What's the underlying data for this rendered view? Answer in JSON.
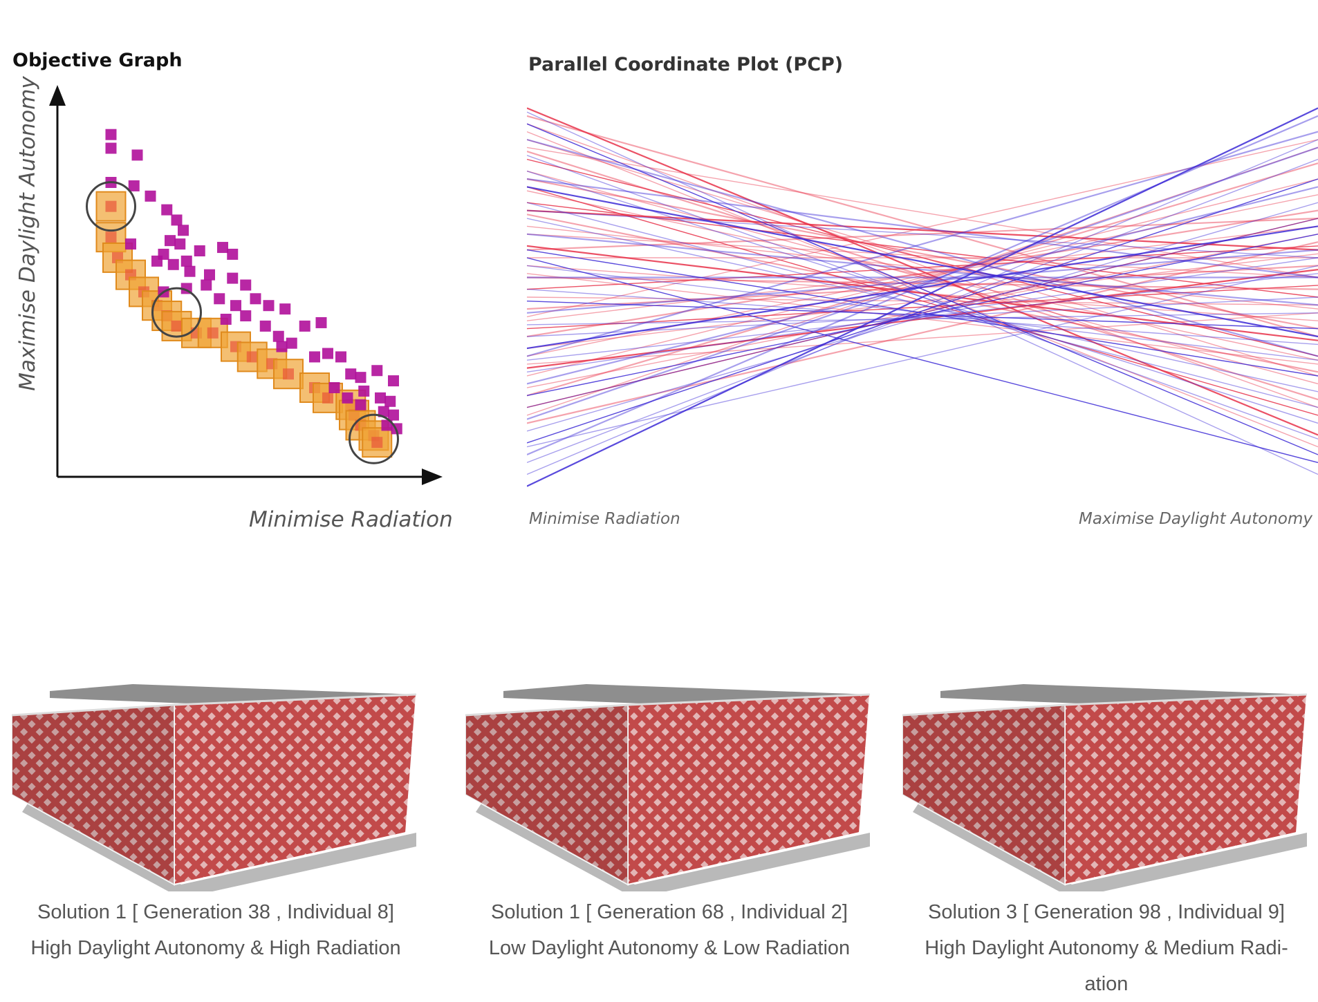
{
  "objective_graph": {
    "title": "Objective Graph"
  },
  "pcp": {
    "title": "Parallel Coordinate Plot (PCP)"
  },
  "chart_data": [
    {
      "type": "scatter",
      "title": "Objective Graph",
      "xlabel": "Minimise Radiation",
      "ylabel": "Maximise Daylight Autonomy",
      "xlim": [
        0,
        10
      ],
      "ylim": [
        0,
        10
      ],
      "grid": false,
      "series": [
        {
          "name": "",
          "color": "#b0109a",
          "points": [
            [
              1.0,
              9.4
            ],
            [
              1.0,
              9.0
            ],
            [
              1.8,
              8.8
            ],
            [
              1.0,
              8.0
            ],
            [
              1.7,
              7.9
            ],
            [
              2.2,
              7.6
            ],
            [
              2.7,
              7.2
            ],
            [
              3.0,
              6.9
            ],
            [
              3.2,
              6.6
            ],
            [
              1.6,
              6.2
            ],
            [
              2.8,
              6.3
            ],
            [
              3.1,
              6.2
            ],
            [
              2.6,
              5.9
            ],
            [
              2.4,
              5.7
            ],
            [
              2.9,
              5.6
            ],
            [
              3.3,
              5.7
            ],
            [
              3.7,
              6.0
            ],
            [
              4.4,
              6.1
            ],
            [
              4.7,
              5.9
            ],
            [
              3.4,
              5.4
            ],
            [
              4.0,
              5.3
            ],
            [
              3.9,
              5.0
            ],
            [
              4.7,
              5.2
            ],
            [
              5.1,
              5.0
            ],
            [
              2.6,
              4.8
            ],
            [
              3.3,
              4.9
            ],
            [
              4.3,
              4.6
            ],
            [
              5.4,
              4.6
            ],
            [
              4.8,
              4.4
            ],
            [
              5.8,
              4.4
            ],
            [
              6.3,
              4.3
            ],
            [
              4.5,
              4.0
            ],
            [
              5.1,
              4.1
            ],
            [
              5.7,
              3.8
            ],
            [
              6.9,
              3.8
            ],
            [
              7.4,
              3.9
            ],
            [
              6.1,
              3.5
            ],
            [
              7.6,
              3.0
            ],
            [
              6.2,
              3.2
            ],
            [
              6.5,
              3.3
            ],
            [
              7.2,
              2.9
            ],
            [
              8.0,
              2.9
            ],
            [
              9.1,
              2.5
            ],
            [
              8.3,
              2.4
            ],
            [
              8.6,
              2.3
            ],
            [
              7.8,
              2.0
            ],
            [
              8.2,
              1.7
            ],
            [
              9.5,
              1.6
            ],
            [
              9.6,
              2.2
            ],
            [
              8.7,
              1.9
            ],
            [
              9.3,
              1.3
            ],
            [
              9.4,
              0.9
            ],
            [
              9.7,
              0.8
            ],
            [
              9.6,
              1.2
            ],
            [
              8.6,
              1.5
            ],
            [
              9.2,
              1.7
            ]
          ]
        },
        {
          "name": "",
          "color": "#f0a436",
          "points": [
            [
              1.0,
              7.3
            ],
            [
              1.0,
              6.4
            ],
            [
              1.2,
              5.8
            ],
            [
              1.6,
              5.3
            ],
            [
              2.0,
              4.8
            ],
            [
              2.4,
              4.4
            ],
            [
              2.7,
              4.1
            ],
            [
              3.0,
              3.8
            ],
            [
              3.6,
              3.6
            ],
            [
              4.1,
              3.6
            ],
            [
              4.8,
              3.2
            ],
            [
              5.3,
              2.9
            ],
            [
              5.9,
              2.7
            ],
            [
              6.4,
              2.4
            ],
            [
              7.2,
              2.0
            ],
            [
              7.6,
              1.7
            ],
            [
              8.3,
              1.5
            ],
            [
              8.4,
              1.2
            ],
            [
              8.6,
              0.9
            ],
            [
              9.0,
              0.6
            ],
            [
              9.1,
              0.4
            ]
          ]
        }
      ],
      "highlighted_solutions": [
        [
          1.0,
          7.3
        ],
        [
          3.0,
          4.2
        ],
        [
          9.0,
          0.5
        ]
      ]
    },
    {
      "type": "line",
      "title": "Parallel Coordinate Plot (PCP)",
      "axes": [
        "Minimise Radiation",
        "Maximise Daylight Autonomy"
      ],
      "ylim": [
        0,
        1
      ],
      "series": [
        {
          "name": "",
          "color": "#e8334a",
          "lines": [
            [
              0.98,
              0.15
            ],
            [
              0.94,
              0.22
            ],
            [
              0.9,
              0.3
            ],
            [
              0.87,
              0.24
            ],
            [
              0.85,
              0.35
            ],
            [
              0.82,
              0.28
            ],
            [
              0.8,
              0.42
            ],
            [
              0.77,
              0.34
            ],
            [
              0.74,
              0.5
            ],
            [
              0.71,
              0.31
            ],
            [
              0.68,
              0.47
            ],
            [
              0.66,
              0.55
            ],
            [
              0.63,
              0.39
            ],
            [
              0.6,
              0.6
            ],
            [
              0.58,
              0.44
            ],
            [
              0.55,
              0.52
            ],
            [
              0.52,
              0.63
            ],
            [
              0.5,
              0.48
            ],
            [
              0.47,
              0.58
            ],
            [
              0.44,
              0.68
            ],
            [
              0.42,
              0.53
            ],
            [
              0.4,
              0.72
            ],
            [
              0.37,
              0.61
            ],
            [
              0.35,
              0.76
            ],
            [
              0.32,
              0.57
            ],
            [
              0.3,
              0.8
            ],
            [
              0.27,
              0.66
            ],
            [
              0.25,
              0.84
            ],
            [
              0.22,
              0.7
            ],
            [
              0.2,
              0.88
            ],
            [
              0.96,
              0.4
            ],
            [
              0.92,
              0.12
            ],
            [
              0.78,
              0.2
            ],
            [
              0.62,
              0.7
            ],
            [
              0.45,
              0.9
            ],
            [
              0.33,
              0.46
            ],
            [
              0.72,
              0.62
            ],
            [
              0.56,
              0.33
            ],
            [
              0.88,
              0.55
            ],
            [
              0.18,
              0.64
            ]
          ]
        },
        {
          "name": "",
          "color": "#3c2ad6",
          "lines": [
            [
              0.02,
              0.98
            ],
            [
              0.05,
              0.9
            ],
            [
              0.08,
              0.85
            ],
            [
              0.1,
              0.96
            ],
            [
              0.13,
              0.8
            ],
            [
              0.16,
              0.74
            ],
            [
              0.19,
              0.88
            ],
            [
              0.22,
              0.7
            ],
            [
              0.25,
              0.66
            ],
            [
              0.28,
              0.78
            ],
            [
              0.31,
              0.6
            ],
            [
              0.34,
              0.56
            ],
            [
              0.37,
              0.68
            ],
            [
              0.4,
              0.5
            ],
            [
              0.43,
              0.46
            ],
            [
              0.46,
              0.62
            ],
            [
              0.49,
              0.42
            ],
            [
              0.52,
              0.38
            ],
            [
              0.55,
              0.55
            ],
            [
              0.58,
              0.34
            ],
            [
              0.62,
              0.3
            ],
            [
              0.66,
              0.48
            ],
            [
              0.7,
              0.26
            ],
            [
              0.74,
              0.22
            ],
            [
              0.78,
              0.4
            ],
            [
              0.82,
              0.18
            ],
            [
              0.86,
              0.14
            ],
            [
              0.9,
              0.35
            ],
            [
              0.94,
              0.1
            ],
            [
              0.97,
              0.05
            ],
            [
              0.8,
              0.55
            ],
            [
              0.12,
              0.58
            ],
            [
              0.6,
              0.08
            ],
            [
              0.35,
              0.92
            ],
            [
              0.72,
              0.6
            ]
          ]
        }
      ]
    }
  ],
  "solutions": [
    {
      "caption_line1": "Solution 1 [ Generation 38 , Individual 8]",
      "caption_line2": "High Daylight Autonomy &  High Radiation"
    },
    {
      "caption_line1": "Solution 1 [ Generation 68 , Individual 2]",
      "caption_line2": "Low Daylight Autonomy &  Low Radiation"
    },
    {
      "caption_line1": "Solution 3 [ Generation 98 , Individual 9]",
      "caption_line2": "High Daylight Autonomy &  Medium Radi-",
      "caption_line3": "ation"
    }
  ],
  "colors": {
    "facade": "#c24a4a",
    "purple": "#b0109a",
    "orange": "#f0a436",
    "pcp_red": "#e8334a",
    "pcp_blue": "#3c2ad6"
  }
}
